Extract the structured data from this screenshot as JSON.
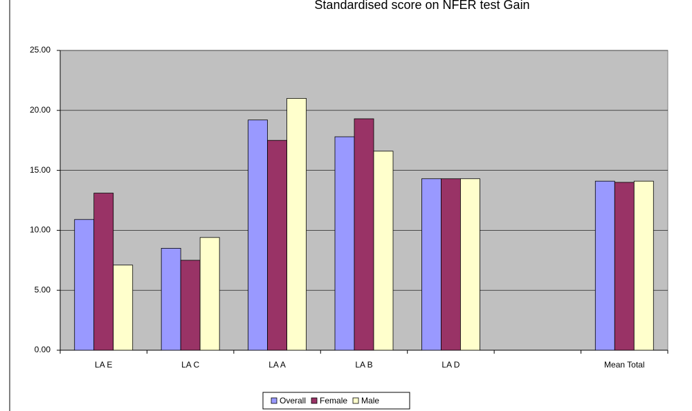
{
  "chart_data": {
    "type": "bar",
    "title": "Standardised score on NFER test Gain",
    "categories": [
      "LA E",
      "LA C",
      "LA A",
      "LA B",
      "LA D",
      null,
      "Mean Total"
    ],
    "series": [
      {
        "name": "Overall",
        "color": "#9999ff",
        "values": [
          10.9,
          8.5,
          19.2,
          17.8,
          14.3,
          null,
          14.1
        ]
      },
      {
        "name": "Female",
        "color": "#993366",
        "values": [
          13.1,
          7.5,
          17.5,
          19.3,
          14.3,
          null,
          14.0
        ]
      },
      {
        "name": "Male",
        "color": "#ffffcc",
        "values": [
          7.1,
          9.4,
          21.0,
          16.6,
          14.3,
          null,
          14.1
        ]
      }
    ],
    "ylim": [
      0,
      25
    ],
    "yticks": [
      {
        "value": 0,
        "label": "0.00"
      },
      {
        "value": 5,
        "label": "5.00"
      },
      {
        "value": 10,
        "label": "10.00"
      },
      {
        "value": 15,
        "label": "15.00"
      },
      {
        "value": 20,
        "label": "20.00"
      },
      {
        "value": 25,
        "label": "25.00"
      }
    ],
    "grid": true,
    "legend": "bottom"
  }
}
